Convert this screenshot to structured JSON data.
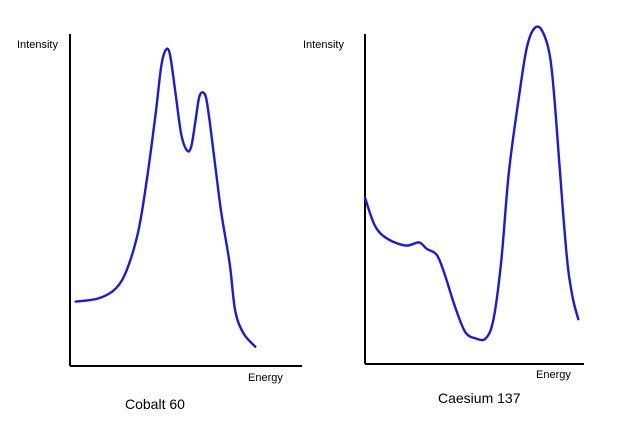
{
  "chart_data": [
    {
      "type": "line",
      "title": "Cobalt 60",
      "xlabel": "Energy",
      "ylabel": "Intensity",
      "xlim": [
        0,
        100
      ],
      "ylim": [
        0,
        100
      ],
      "x_ticks": "none",
      "y_ticks": "none",
      "grid": false,
      "color": "#1a1adb",
      "points": [
        [
          2,
          20
        ],
        [
          10,
          21
        ],
        [
          16,
          24
        ],
        [
          20,
          30
        ],
        [
          24,
          42
        ],
        [
          27,
          58
        ],
        [
          30,
          78
        ],
        [
          32,
          93
        ],
        [
          33.5,
          98
        ],
        [
          35,
          97
        ],
        [
          37,
          85
        ],
        [
          39,
          72
        ],
        [
          41,
          67
        ],
        [
          42.5,
          68
        ],
        [
          44,
          76
        ],
        [
          45.5,
          84
        ],
        [
          47.5,
          84
        ],
        [
          49,
          76
        ],
        [
          51,
          62
        ],
        [
          53,
          48
        ],
        [
          56,
          32
        ],
        [
          58,
          17
        ],
        [
          61,
          10
        ],
        [
          65,
          6
        ]
      ]
    },
    {
      "type": "line",
      "title": "Caesium 137",
      "xlabel": "Energy",
      "ylabel": "Intensity",
      "xlim": [
        0,
        100
      ],
      "ylim": [
        0,
        100
      ],
      "x_ticks": "none",
      "y_ticks": "none",
      "grid": false,
      "color": "#1a1adb",
      "points": [
        [
          0,
          52
        ],
        [
          4,
          43
        ],
        [
          9,
          39
        ],
        [
          16,
          37
        ],
        [
          21,
          38
        ],
        [
          24,
          36
        ],
        [
          28,
          34
        ],
        [
          31,
          28
        ],
        [
          35,
          18
        ],
        [
          39,
          10
        ],
        [
          43,
          8
        ],
        [
          47,
          8
        ],
        [
          50,
          14
        ],
        [
          53,
          32
        ],
        [
          56,
          60
        ],
        [
          60,
          84
        ],
        [
          63,
          99
        ],
        [
          66,
          105
        ],
        [
          69,
          104
        ],
        [
          72,
          96
        ],
        [
          74,
          80
        ],
        [
          77,
          48
        ],
        [
          79,
          30
        ],
        [
          81,
          20
        ],
        [
          83,
          14
        ]
      ]
    }
  ]
}
